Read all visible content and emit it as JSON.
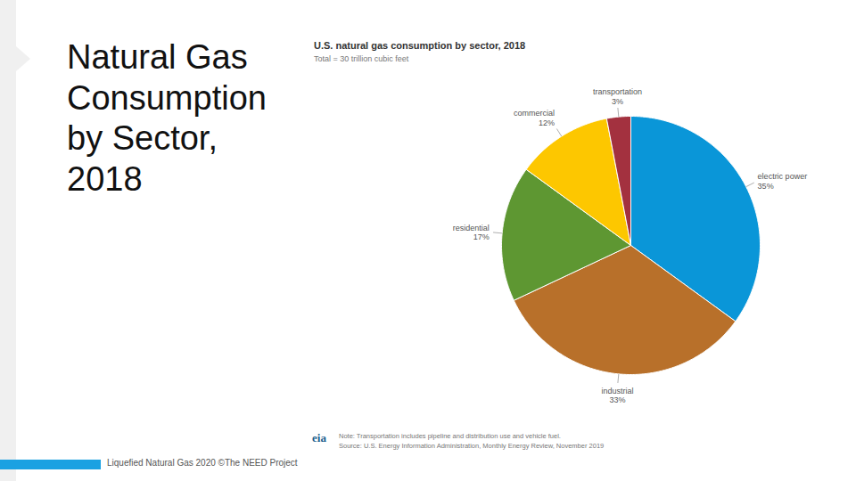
{
  "page": {
    "title": "Natural Gas Consumption by Sector, 2018",
    "footer": "Liquefied Natural Gas 2020 ©The NEED Project"
  },
  "chart_data": {
    "type": "pie",
    "title": "U.S. natural gas consumption by sector, 2018",
    "subtitle": "Total = 30 trillion cubic feet",
    "categories": [
      "electric power",
      "industrial",
      "residential",
      "commercial",
      "transportation"
    ],
    "values": [
      35,
      33,
      17,
      12,
      3
    ],
    "value_labels": [
      "35%",
      "33%",
      "17%",
      "12%",
      "3%"
    ],
    "colors": [
      "#0a96d8",
      "#b8702a",
      "#5e9732",
      "#fdc700",
      "#a3313f"
    ],
    "data_labels": true,
    "note": "Note: Transportation includes pipeline and distribution use and vehicle fuel.",
    "source": "Source: U.S. Energy Information Administration, Monthly Energy Review, November 2019",
    "logo": "eia"
  }
}
